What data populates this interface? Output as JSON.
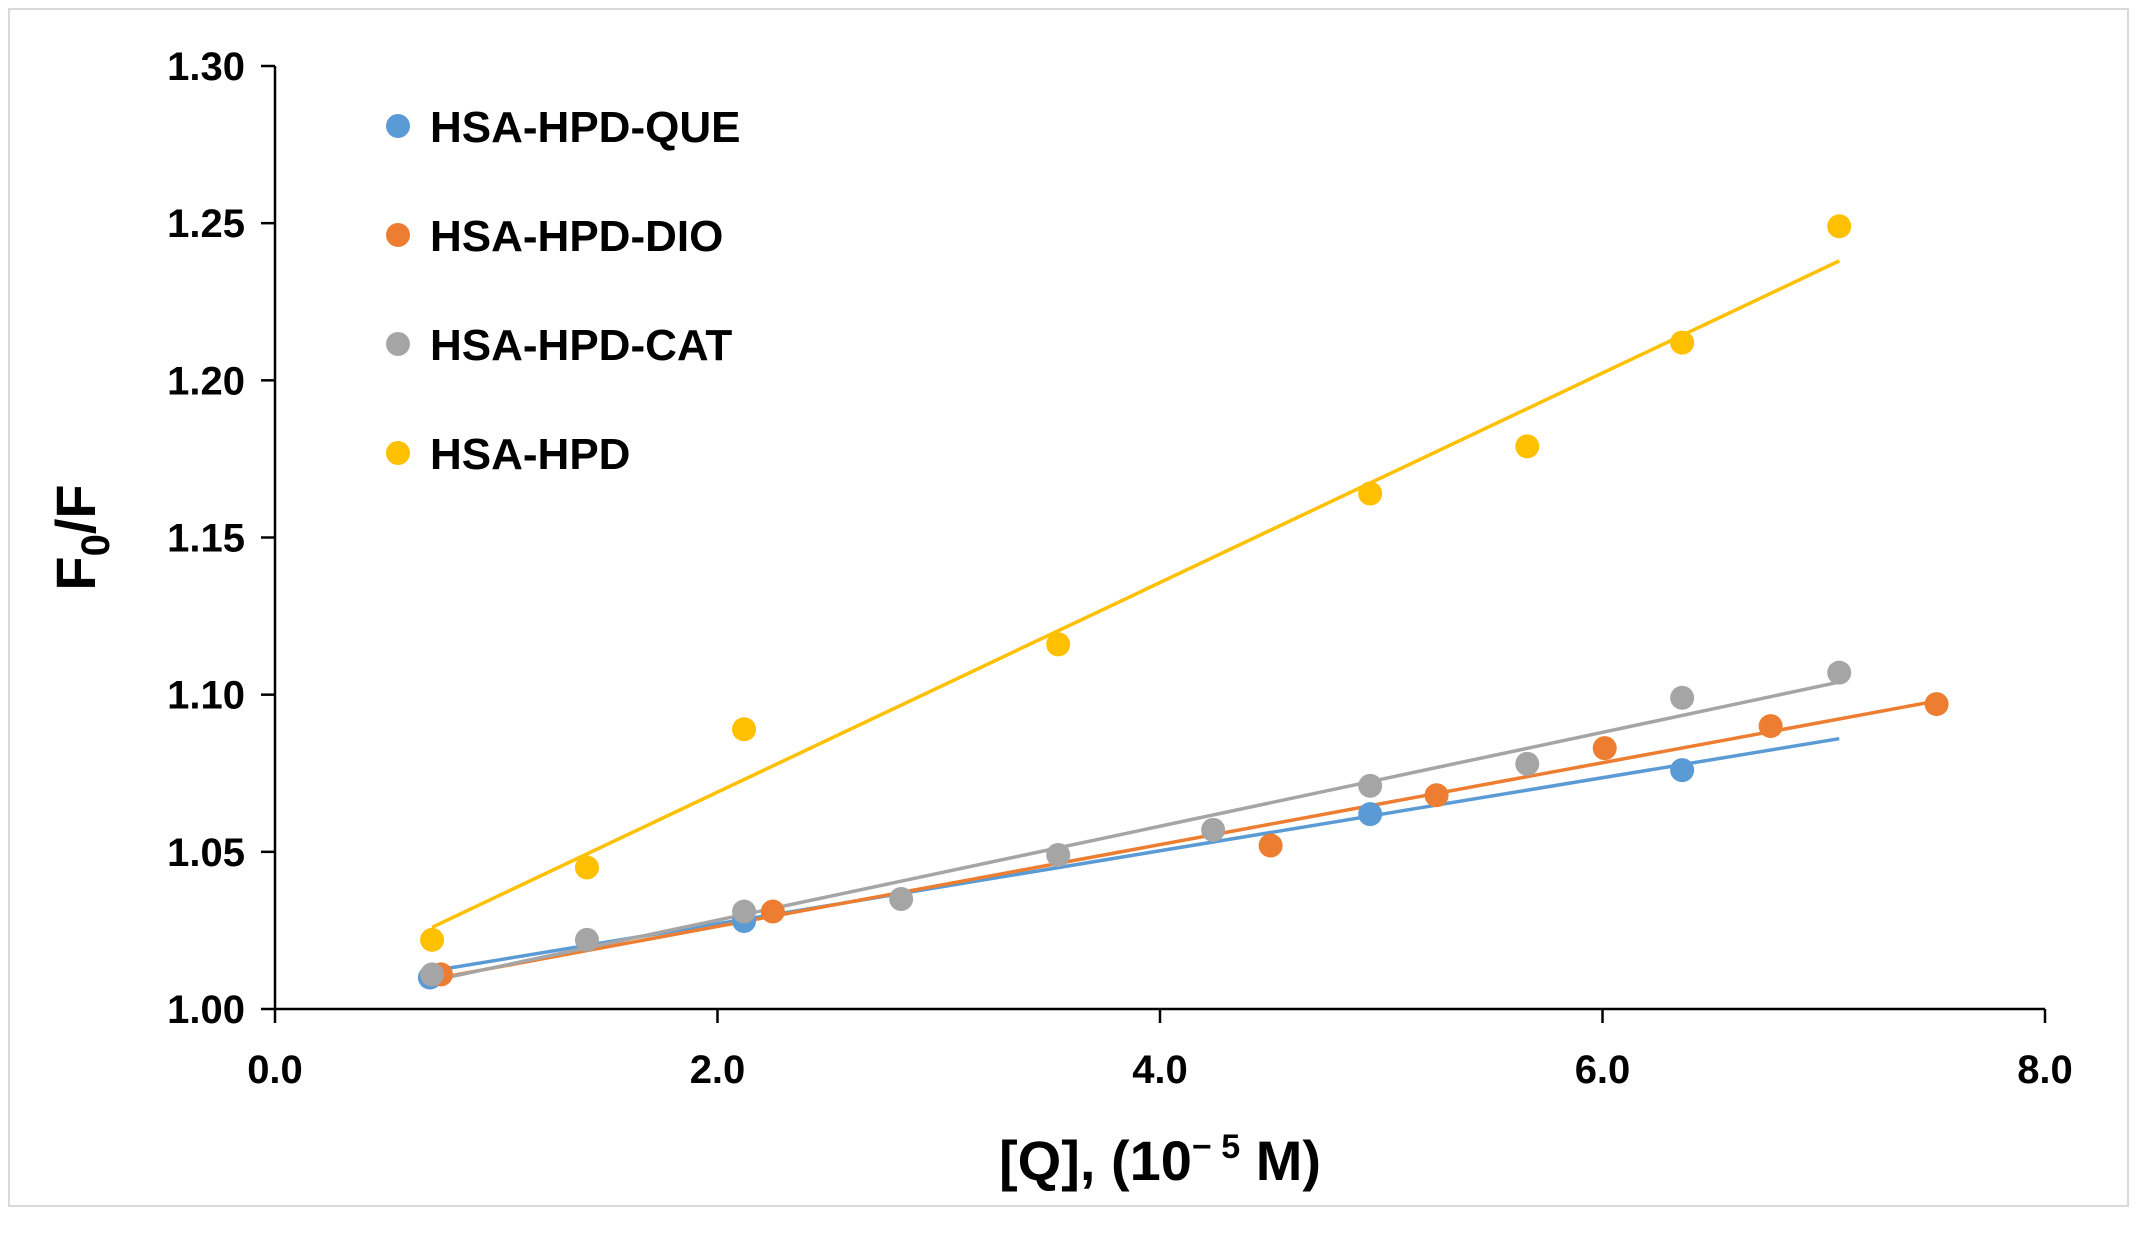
{
  "chart_data": {
    "type": "scatter",
    "title": "",
    "xlabel": "[Q], (10⁻⁵ M)",
    "xlabel_parts": {
      "prefix": "[Q], (10",
      "superscript": "− 5",
      "suffix": " M)"
    },
    "ylabel": "F0/F",
    "ylabel_parts": {
      "main": "F",
      "subscript": "0",
      "suffix": "/F"
    },
    "xlim": [
      0,
      8
    ],
    "ylim": [
      1.0,
      1.3
    ],
    "x_ticks": [
      0,
      2,
      4,
      6,
      8
    ],
    "x_tick_labels": [
      "0.0",
      "2.0",
      "4.0",
      "6.0",
      "8.0"
    ],
    "y_ticks": [
      1.0,
      1.05,
      1.1,
      1.15,
      1.2,
      1.25,
      1.3
    ],
    "y_tick_labels": [
      "1.00",
      "1.05",
      "1.10",
      "1.15",
      "1.20",
      "1.25",
      "1.30"
    ],
    "grid": false,
    "legend_position": "top-left",
    "series": [
      {
        "name": "HSA-HPD-QUE",
        "color": "#5b9bd5",
        "points": [
          {
            "x": 0.7,
            "y": 1.01
          },
          {
            "x": 2.12,
            "y": 1.028
          },
          {
            "x": 4.95,
            "y": 1.062
          },
          {
            "x": 6.36,
            "y": 1.076
          }
        ],
        "trendline": {
          "x": [
            0.7,
            7.07
          ],
          "y": [
            1.012,
            1.086
          ]
        }
      },
      {
        "name": "HSA-HPD-DIO",
        "color": "#ed7d31",
        "points": [
          {
            "x": 0.75,
            "y": 1.011
          },
          {
            "x": 2.25,
            "y": 1.031
          },
          {
            "x": 4.5,
            "y": 1.052
          },
          {
            "x": 5.25,
            "y": 1.068
          },
          {
            "x": 6.01,
            "y": 1.083
          },
          {
            "x": 6.76,
            "y": 1.09
          },
          {
            "x": 7.51,
            "y": 1.097
          }
        ],
        "trendline": {
          "x": [
            0.75,
            7.51
          ],
          "y": [
            1.01,
            1.098
          ]
        }
      },
      {
        "name": "HSA-HPD-CAT",
        "color": "#a5a5a5",
        "points": [
          {
            "x": 0.71,
            "y": 1.011
          },
          {
            "x": 1.41,
            "y": 1.022
          },
          {
            "x": 2.12,
            "y": 1.031
          },
          {
            "x": 2.83,
            "y": 1.035
          },
          {
            "x": 3.54,
            "y": 1.049
          },
          {
            "x": 4.24,
            "y": 1.057
          },
          {
            "x": 4.95,
            "y": 1.071
          },
          {
            "x": 5.66,
            "y": 1.078
          },
          {
            "x": 6.36,
            "y": 1.099
          },
          {
            "x": 7.07,
            "y": 1.107
          }
        ],
        "trendline": {
          "x": [
            0.71,
            7.07
          ],
          "y": [
            1.009,
            1.104
          ]
        }
      },
      {
        "name": "HSA-HPD",
        "color": "#ffc000",
        "points": [
          {
            "x": 0.71,
            "y": 1.022
          },
          {
            "x": 1.41,
            "y": 1.045
          },
          {
            "x": 2.12,
            "y": 1.089
          },
          {
            "x": 3.54,
            "y": 1.116
          },
          {
            "x": 4.95,
            "y": 1.164
          },
          {
            "x": 5.66,
            "y": 1.179
          },
          {
            "x": 6.36,
            "y": 1.212
          },
          {
            "x": 7.07,
            "y": 1.249
          }
        ],
        "trendline": {
          "x": [
            0.71,
            7.07
          ],
          "y": [
            1.026,
            1.238
          ]
        }
      }
    ]
  }
}
